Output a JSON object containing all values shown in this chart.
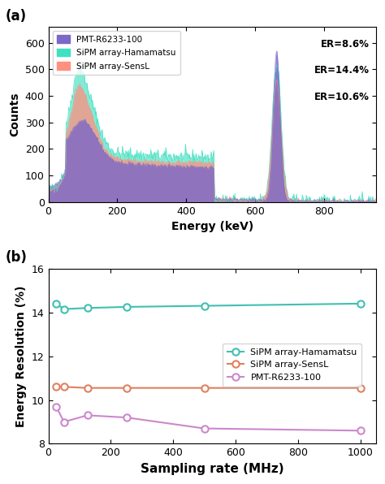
{
  "panel_a": {
    "pmt_color": "#7B68C8",
    "hama_color": "#40E0C0",
    "sensl_color": "#FF9080",
    "pmt_label": "PMT-R6233-100",
    "hama_label": "SiPM array-Hamamatsu",
    "sensl_label": "SiPM array-SensL",
    "pmt_er": "ER=8.6%",
    "hama_er": "ER=14.4%",
    "sensl_er": "ER=10.6%",
    "xlabel": "Energy (keV)",
    "ylabel": "Counts",
    "xlim": [
      0,
      950
    ],
    "ylim": [
      0,
      660
    ],
    "xticks": [
      0,
      200,
      400,
      600,
      800
    ],
    "yticks": [
      0,
      100,
      200,
      300,
      400,
      500,
      600
    ]
  },
  "panel_b": {
    "sampling_rates": [
      25,
      50,
      125,
      250,
      500,
      1000
    ],
    "pmt_er": [
      9.7,
      9.0,
      9.3,
      9.2,
      8.7,
      8.6
    ],
    "hama_er": [
      14.4,
      14.15,
      14.2,
      14.25,
      14.3,
      14.4
    ],
    "sensl_er": [
      10.6,
      10.6,
      10.55,
      10.55,
      10.55,
      10.55
    ],
    "pmt_color": "#CC88CC",
    "hama_color": "#40C0B0",
    "sensl_color": "#E08060",
    "pmt_label": "PMT-R6233-100",
    "hama_label": "SiPM array-Hamamatsu",
    "sensl_label": "SiPM array-SensL",
    "xlabel": "Sampling rate (MHz)",
    "ylabel": "Energy Resolution (%)",
    "xlim": [
      0,
      1050
    ],
    "ylim": [
      8,
      16
    ],
    "xticks": [
      0,
      200,
      400,
      600,
      800,
      1000
    ],
    "yticks": [
      8,
      10,
      12,
      14,
      16
    ]
  }
}
